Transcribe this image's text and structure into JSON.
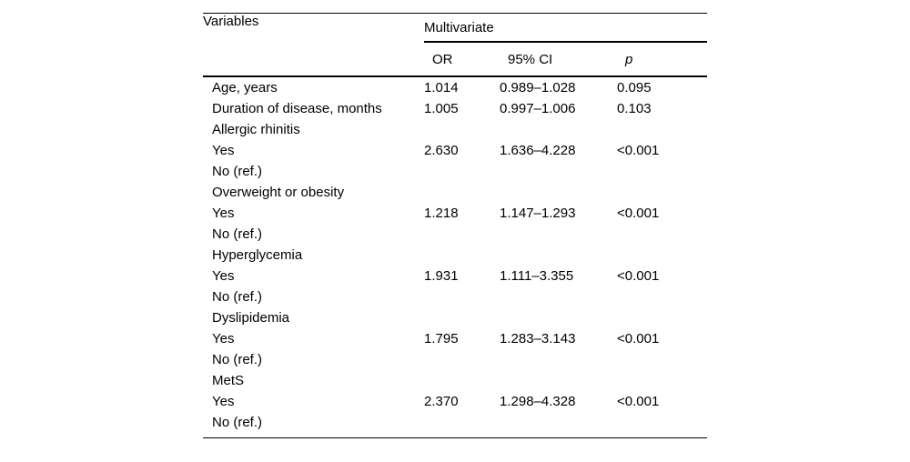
{
  "page": {
    "background_color": "#ffffff",
    "text_color": "#000000",
    "rule_color": "#000000"
  },
  "table": {
    "col1_header": "Variables",
    "group_header": "Multivariate",
    "sub_headers": {
      "or": "OR",
      "ci": "95% CI",
      "p": "p"
    },
    "rows": [
      {
        "label": "Age, years",
        "or": "1.014",
        "ci": "0.989–1.028",
        "p": "0.095"
      },
      {
        "label": "Duration of disease, months",
        "or": "1.005",
        "ci": "0.997–1.006",
        "p": "0.103"
      },
      {
        "label": "Allergic rhinitis",
        "or": "",
        "ci": "",
        "p": ""
      },
      {
        "label": "Yes",
        "or": "2.630",
        "ci": "1.636–4.228",
        "p": "<0.001"
      },
      {
        "label": "No (ref.)",
        "or": "",
        "ci": "",
        "p": ""
      },
      {
        "label": "Overweight or obesity",
        "or": "",
        "ci": "",
        "p": ""
      },
      {
        "label": "Yes",
        "or": "1.218",
        "ci": "1.147–1.293",
        "p": "<0.001"
      },
      {
        "label": "No (ref.)",
        "or": "",
        "ci": "",
        "p": ""
      },
      {
        "label": "Hyperglycemia",
        "or": "",
        "ci": "",
        "p": ""
      },
      {
        "label": "Yes",
        "or": "1.931",
        "ci": "1.111–3.355",
        "p": "<0.001"
      },
      {
        "label": "No (ref.)",
        "or": "",
        "ci": "",
        "p": ""
      },
      {
        "label": "Dyslipidemia",
        "or": "",
        "ci": "",
        "p": ""
      },
      {
        "label": "Yes",
        "or": "1.795",
        "ci": "1.283–3.143",
        "p": "<0.001"
      },
      {
        "label": "No (ref.)",
        "or": "",
        "ci": "",
        "p": ""
      },
      {
        "label": "MetS",
        "or": "",
        "ci": "",
        "p": ""
      },
      {
        "label": "Yes",
        "or": "2.370",
        "ci": "1.298–4.328",
        "p": "<0.001"
      },
      {
        "label": "No (ref.)",
        "or": "",
        "ci": "",
        "p": ""
      }
    ]
  }
}
